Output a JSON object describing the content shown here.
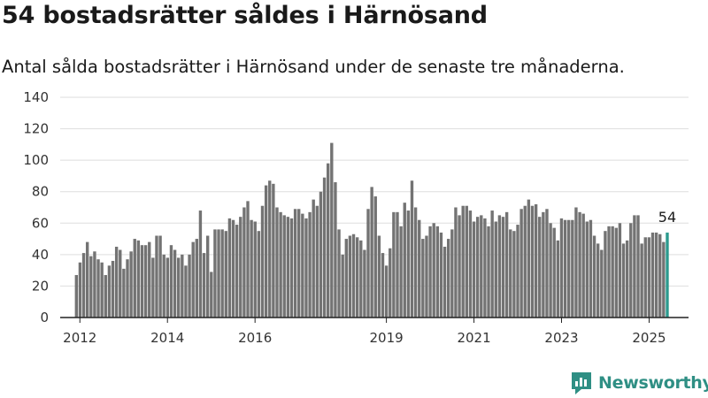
{
  "title": "54 bostadsrätter såldes i Härnösand",
  "subtitle": "Antal sålda bostadsrätter i Härnösand under de senaste tre månaderna.",
  "brand": {
    "name": "Newsworthy",
    "color": "#2f8f84"
  },
  "chart_data": {
    "type": "bar",
    "title": "54 bostadsrätter såldes i Härnösand",
    "subtitle": "Antal sålda bostadsrätter i Härnösand under de senaste tre månaderna.",
    "ylim": [
      0,
      140
    ],
    "yticks": [
      0,
      20,
      40,
      60,
      80,
      100,
      120,
      140
    ],
    "xlim": [
      2011.55,
      2025.9
    ],
    "xticks": [
      2012,
      2014,
      2016,
      2019,
      2021,
      2023,
      2025
    ],
    "start": 2011.92,
    "step": 0.0833,
    "values": [
      27,
      35,
      41,
      48,
      39,
      42,
      37,
      35,
      27,
      33,
      36,
      45,
      43,
      31,
      37,
      42,
      50,
      49,
      46,
      46,
      48,
      38,
      52,
      52,
      40,
      38,
      46,
      43,
      38,
      40,
      33,
      40,
      48,
      50,
      68,
      41,
      52,
      29,
      56,
      56,
      56,
      55,
      63,
      62,
      59,
      64,
      70,
      74,
      62,
      61,
      55,
      71,
      84,
      87,
      85,
      70,
      67,
      65,
      64,
      63,
      69,
      69,
      66,
      63,
      67,
      75,
      71,
      80,
      89,
      98,
      111,
      86,
      56,
      40,
      50,
      52,
      53,
      51,
      49,
      43,
      69,
      83,
      77,
      52,
      41,
      33,
      44,
      67,
      67,
      58,
      73,
      68,
      87,
      70,
      62,
      50,
      52,
      58,
      60,
      58,
      54,
      45,
      50,
      56,
      70,
      65,
      71,
      71,
      68,
      61,
      64,
      65,
      63,
      58,
      68,
      61,
      65,
      64,
      67,
      56,
      55,
      59,
      69,
      71,
      75,
      71,
      72,
      64,
      67,
      69,
      60,
      57,
      49,
      63,
      62,
      62,
      62,
      70,
      67,
      66,
      61,
      62,
      52,
      47,
      43,
      55,
      58,
      58,
      57,
      60,
      47,
      49,
      60,
      65,
      65,
      47,
      51,
      51,
      54,
      54,
      53,
      48,
      54
    ],
    "bar_color": "#737373",
    "highlight_color": "#2c9a8e",
    "highlight_last": true,
    "last_label": "54",
    "grid": true
  }
}
